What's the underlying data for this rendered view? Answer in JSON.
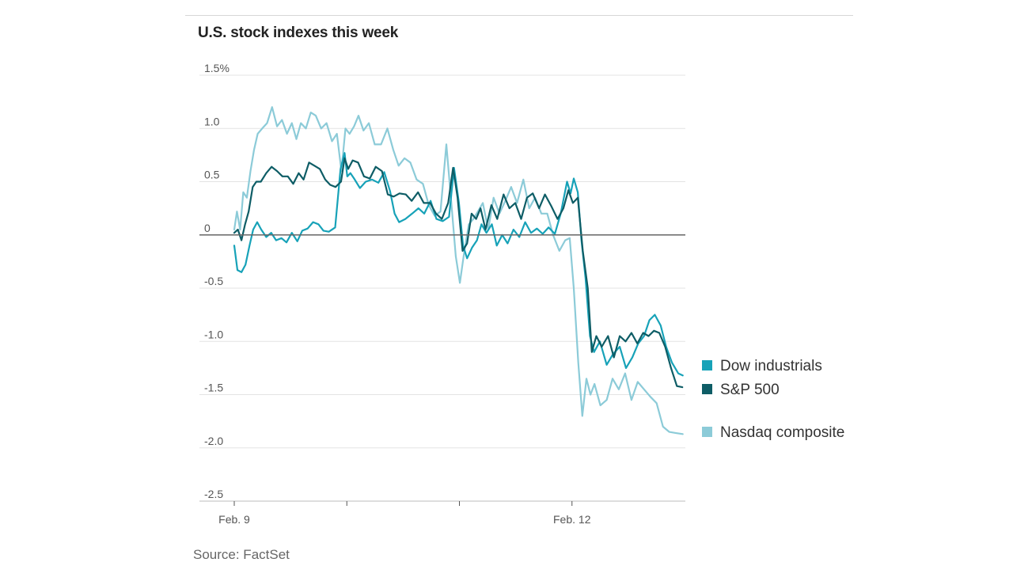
{
  "source": "Source: FactSet",
  "colors": {
    "dow": "#17a2b8",
    "sp": "#0e5d66",
    "nasdaq": "#8ccbd8",
    "grid": "#e3e3e3",
    "zero": "#666666"
  },
  "chart_data": {
    "type": "line",
    "title": "U.S. stock indexes this week",
    "xlabel": "",
    "ylabel": "",
    "ylim": [
      -2.5,
      1.5
    ],
    "xlim": [
      0,
      100
    ],
    "grid": true,
    "legend_position": "right",
    "y_ticks": [
      {
        "value": 1.5,
        "label": "1.5%"
      },
      {
        "value": 1.0,
        "label": "1.0"
      },
      {
        "value": 0.5,
        "label": "0.5"
      },
      {
        "value": 0,
        "label": "0"
      },
      {
        "value": -0.5,
        "label": "-0.5"
      },
      {
        "value": -1.0,
        "label": "-1.0"
      },
      {
        "value": -1.5,
        "label": "-1.5"
      },
      {
        "value": -2.0,
        "label": "-2.0"
      },
      {
        "value": -2.5,
        "label": "-2.5"
      }
    ],
    "x_ticks": [
      {
        "value": 0,
        "label": "Feb. 9"
      },
      {
        "value": 25,
        "label": ""
      },
      {
        "value": 50,
        "label": ""
      },
      {
        "value": 75,
        "label": "Feb. 12"
      }
    ],
    "series": [
      {
        "name": "Dow industrials",
        "key": "dow",
        "x": [
          0,
          0.7,
          1.6,
          2.5,
          3.4,
          4.2,
          5.1,
          6.0,
          7.1,
          8.2,
          9.3,
          10.5,
          11.6,
          12.8,
          14.0,
          15.1,
          16.3,
          17.5,
          18.7,
          19.8,
          21.0,
          22.4,
          23.6,
          24.5,
          25.1,
          25.8,
          26.6,
          27.9,
          29.2,
          30.6,
          32.0,
          33.3,
          34.6,
          35.6,
          36.6,
          38.0,
          39.5,
          40.9,
          42.2,
          43.6,
          44.9,
          46.3,
          47.7,
          48.8,
          49.9,
          50.8,
          51.7,
          52.8,
          53.9,
          54.9,
          56.0,
          57.2,
          58.3,
          59.5,
          60.7,
          62.0,
          63.3,
          64.6,
          65.9,
          67.2,
          68.5,
          69.8,
          71.2,
          72.5,
          73.9,
          74.7,
          75.4,
          76.3,
          77.1,
          78.0,
          79.0,
          79.9,
          81.2,
          82.7,
          84.1,
          85.6,
          87.0,
          88.4,
          89.7,
          91.0,
          92.2,
          93.4,
          94.7,
          95.9,
          97.2,
          98.6,
          99.6
        ],
        "values": [
          -0.1,
          -0.33,
          -0.35,
          -0.28,
          -0.1,
          0.05,
          0.12,
          0.05,
          -0.02,
          0.02,
          -0.05,
          -0.03,
          -0.07,
          0.02,
          -0.06,
          0.04,
          0.06,
          0.12,
          0.1,
          0.04,
          0.03,
          0.07,
          0.62,
          0.77,
          0.55,
          0.58,
          0.53,
          0.44,
          0.5,
          0.52,
          0.49,
          0.59,
          0.41,
          0.2,
          0.12,
          0.15,
          0.2,
          0.25,
          0.2,
          0.32,
          0.15,
          0.13,
          0.17,
          0.63,
          0.3,
          -0.1,
          -0.22,
          -0.12,
          -0.05,
          0.1,
          0.02,
          0.1,
          -0.1,
          0.0,
          -0.08,
          0.05,
          -0.02,
          0.12,
          0.02,
          0.06,
          0.01,
          0.07,
          0.01,
          0.2,
          0.5,
          0.39,
          0.53,
          0.4,
          -0.05,
          -0.4,
          -0.95,
          -1.1,
          -1.0,
          -1.22,
          -1.12,
          -1.05,
          -1.25,
          -1.15,
          -1.02,
          -0.95,
          -0.8,
          -0.75,
          -0.85,
          -1.05,
          -1.2,
          -1.3,
          -1.32
        ]
      },
      {
        "name": "S&P 500",
        "key": "sp",
        "x": [
          0,
          0.8,
          1.6,
          2.4,
          3.2,
          4.1,
          4.9,
          5.9,
          7.1,
          8.3,
          9.5,
          10.7,
          11.9,
          13.1,
          14.3,
          15.4,
          16.6,
          17.8,
          19.0,
          20.2,
          21.3,
          22.5,
          23.7,
          24.5,
          25.3,
          26.3,
          27.5,
          28.8,
          30.1,
          31.4,
          32.8,
          34.1,
          35.4,
          36.7,
          38.1,
          39.4,
          40.8,
          42.1,
          43.5,
          44.8,
          46.1,
          47.5,
          48.6,
          49.6,
          50.7,
          51.7,
          52.7,
          53.7,
          54.7,
          55.8,
          57.1,
          58.4,
          59.8,
          61.1,
          62.4,
          63.7,
          65.0,
          66.3,
          67.7,
          69.0,
          70.4,
          71.8,
          73.1,
          74.2,
          75.2,
          76.3,
          77.4,
          78.5,
          79.4,
          80.4,
          81.6,
          83.0,
          84.3,
          85.6,
          86.9,
          88.2,
          89.5,
          90.8,
          92.0,
          93.2,
          94.4,
          95.7,
          97.0,
          98.3,
          99.5
        ],
        "values": [
          0.02,
          0.05,
          -0.05,
          0.1,
          0.22,
          0.45,
          0.5,
          0.5,
          0.58,
          0.64,
          0.6,
          0.55,
          0.55,
          0.48,
          0.58,
          0.52,
          0.68,
          0.65,
          0.62,
          0.52,
          0.47,
          0.45,
          0.5,
          0.72,
          0.62,
          0.7,
          0.68,
          0.55,
          0.53,
          0.64,
          0.6,
          0.38,
          0.36,
          0.39,
          0.38,
          0.32,
          0.4,
          0.3,
          0.3,
          0.2,
          0.15,
          0.3,
          0.63,
          0.35,
          -0.15,
          -0.08,
          0.2,
          0.15,
          0.25,
          0.05,
          0.28,
          0.15,
          0.38,
          0.25,
          0.3,
          0.15,
          0.35,
          0.39,
          0.25,
          0.38,
          0.27,
          0.15,
          0.25,
          0.42,
          0.3,
          0.35,
          -0.15,
          -0.5,
          -1.1,
          -0.95,
          -1.05,
          -0.95,
          -1.15,
          -0.95,
          -1.0,
          -0.92,
          -1.02,
          -0.92,
          -0.95,
          -0.9,
          -0.92,
          -1.05,
          -1.25,
          -1.42,
          -1.43
        ]
      },
      {
        "name": "Nasdaq composite",
        "key": "nasdaq",
        "x": [
          0,
          0.6,
          1.3,
          2.0,
          2.8,
          3.6,
          4.4,
          5.2,
          6.2,
          7.3,
          8.4,
          9.5,
          10.6,
          11.7,
          12.8,
          13.8,
          14.8,
          15.9,
          17.0,
          18.1,
          19.3,
          20.5,
          21.7,
          22.8,
          23.8,
          24.7,
          25.6,
          26.6,
          27.6,
          28.7,
          29.9,
          31.2,
          32.6,
          34.0,
          35.3,
          36.5,
          37.8,
          39.1,
          40.5,
          41.9,
          43.2,
          44.5,
          45.8,
          47.1,
          48.2,
          49.2,
          50.1,
          51.1,
          52.1,
          53.1,
          54.1,
          55.2,
          56.4,
          57.6,
          58.9,
          60.2,
          61.5,
          62.8,
          64.2,
          65.5,
          66.8,
          68.2,
          69.5,
          70.8,
          72.2,
          73.5,
          74.5,
          75.4,
          76.4,
          77.3,
          78.2,
          79.1,
          80.0,
          81.3,
          82.7,
          84.0,
          85.4,
          86.8,
          88.2,
          89.6,
          91.0,
          92.4,
          93.8,
          95.2,
          96.6,
          98.0,
          99.6
        ],
        "values": [
          0.05,
          0.22,
          0.05,
          0.4,
          0.35,
          0.6,
          0.8,
          0.95,
          1.0,
          1.05,
          1.2,
          1.02,
          1.08,
          0.95,
          1.05,
          0.9,
          1.05,
          1.0,
          1.15,
          1.12,
          1.0,
          1.05,
          0.88,
          0.95,
          0.6,
          1.0,
          0.95,
          1.02,
          1.12,
          0.98,
          1.05,
          0.85,
          0.85,
          1.0,
          0.8,
          0.65,
          0.72,
          0.68,
          0.52,
          0.48,
          0.28,
          0.18,
          0.22,
          0.85,
          0.3,
          -0.2,
          -0.45,
          -0.15,
          0.1,
          0.15,
          0.22,
          0.3,
          0.05,
          0.35,
          0.2,
          0.32,
          0.45,
          0.3,
          0.52,
          0.25,
          0.35,
          0.2,
          0.2,
          0.0,
          -0.15,
          -0.05,
          -0.03,
          -0.5,
          -1.2,
          -1.7,
          -1.35,
          -1.5,
          -1.4,
          -1.6,
          -1.55,
          -1.35,
          -1.45,
          -1.3,
          -1.55,
          -1.38,
          -1.45,
          -1.52,
          -1.58,
          -1.8,
          -1.85,
          -1.86,
          -1.87
        ]
      }
    ]
  }
}
